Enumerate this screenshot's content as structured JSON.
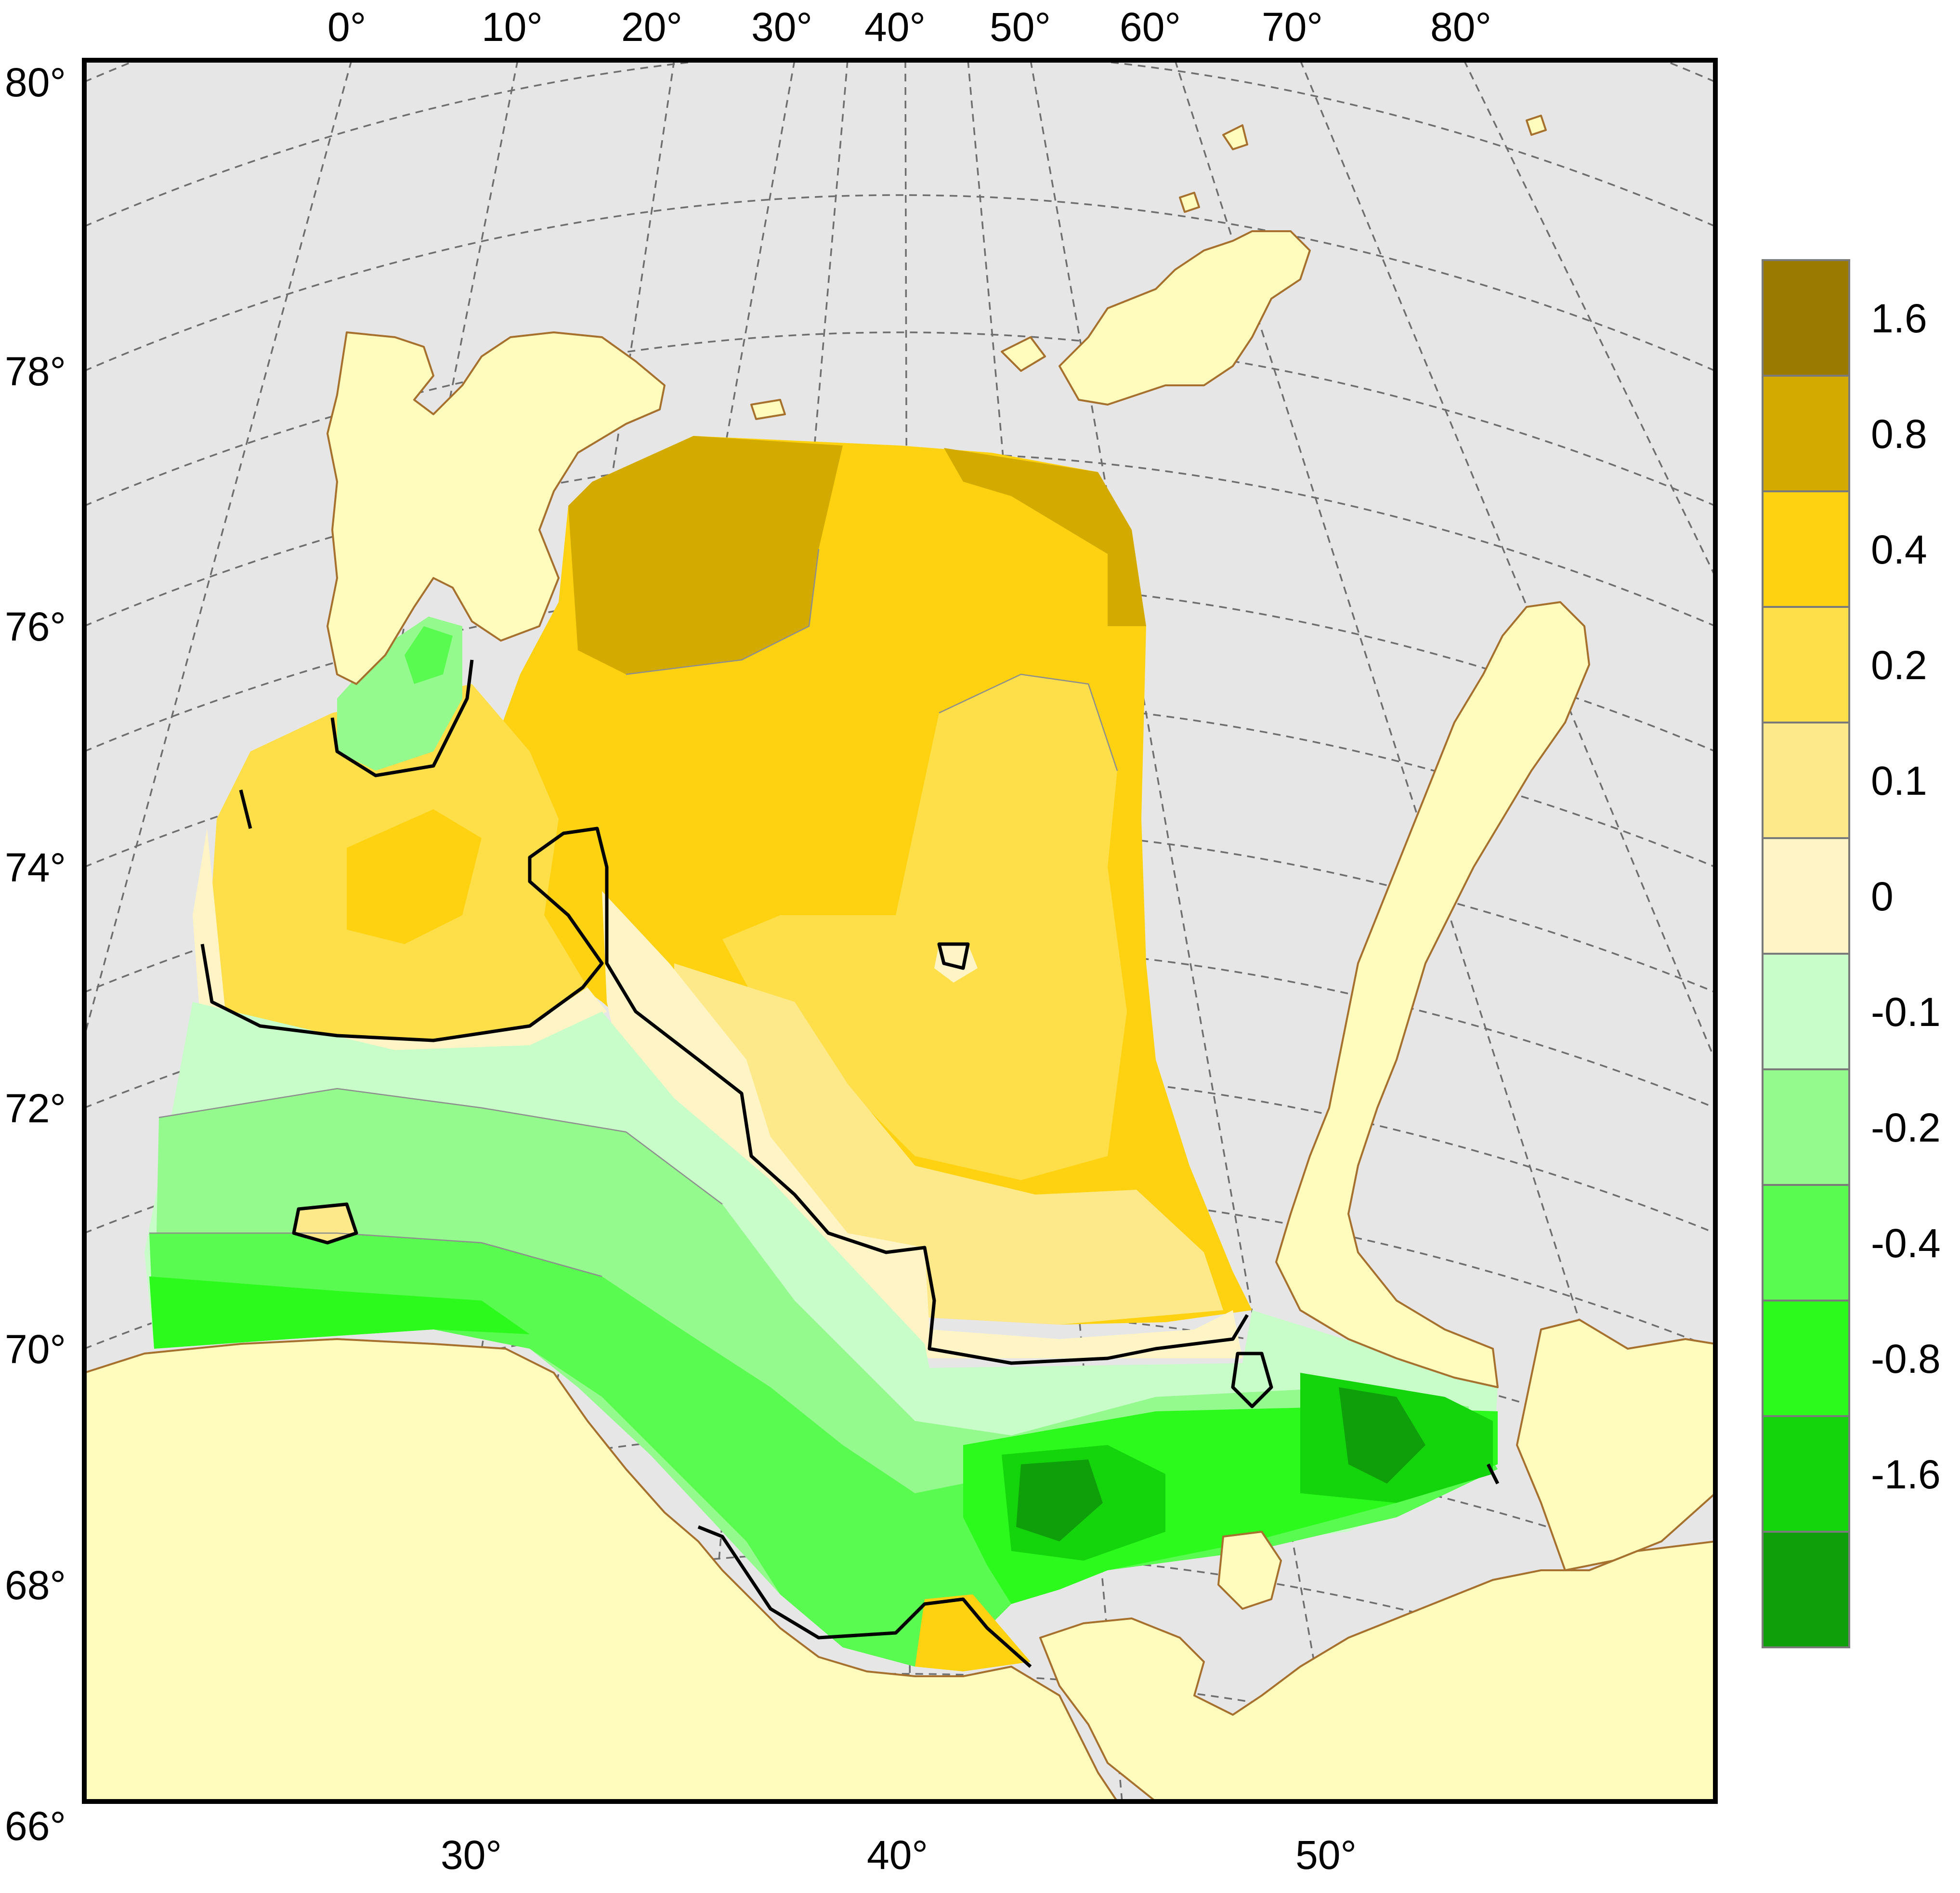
{
  "map": {
    "top_lon_labels": [
      "0°",
      "10°",
      "20°",
      "30°",
      "40°",
      "50°",
      "60°",
      "70°",
      "80°"
    ],
    "left_lat_labels": [
      "80°",
      "78°",
      "76°",
      "74°",
      "72°",
      "70°",
      "68°",
      "66°"
    ],
    "bottom_lon_labels": [
      "30°",
      "40°",
      "50°"
    ]
  },
  "colorbar": {
    "labels": [
      "1.6",
      "0.8",
      "0.4",
      "0.2",
      "0.1",
      "0",
      "-0.1",
      "-0.2",
      "-0.4",
      "-0.8",
      "-1.6"
    ],
    "colors": [
      "#9b7a00",
      "#d3aa00",
      "#fed210",
      "#fedf4a",
      "#fee98a",
      "#fff4c6",
      "#c8fcc8",
      "#94fa8e",
      "#5afb50",
      "#2cfa1c",
      "#14d40c",
      "#0f9f0b"
    ]
  },
  "colors": {
    "ocean": "#e6e6e6",
    "land": "#fffcbd",
    "coast": "#a6702e",
    "zero_contour": "#000000"
  }
}
